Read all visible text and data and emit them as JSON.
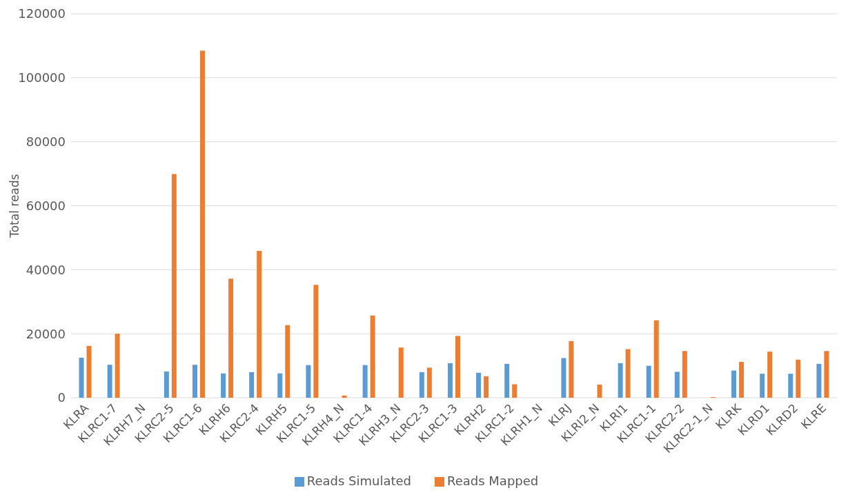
{
  "chart_data": {
    "type": "bar",
    "ylabel": "Total reads",
    "categories": [
      "KLRA",
      "KLRC1-7",
      "KLRH7_N",
      "KLRC2-5",
      "KLRC1-6",
      "KLRH6",
      "KLRC2-4",
      "KLRH5",
      "KLRC1-5",
      "KLRH4_N",
      "KLRC1-4",
      "KLRH3_N",
      "KLRC2-3",
      "KLRC1-3",
      "KLRH2",
      "KLRC1-2",
      "KLRH1_N",
      "KLRJ",
      "KLRI2_N",
      "KLRI1",
      "KLRC1-1",
      "KLRC2-2",
      "KLRC2-1_N",
      "KLRK",
      "KLRD1",
      "KLRD2",
      "KLRE"
    ],
    "series": [
      {
        "name": "Reads Simulated",
        "color": "#5b9bd5",
        "values": [
          12500,
          10300,
          0,
          8200,
          10300,
          7600,
          8000,
          7600,
          10200,
          0,
          10200,
          0,
          8000,
          10800,
          7800,
          10600,
          0,
          12400,
          0,
          10800,
          10000,
          8100,
          0,
          8500,
          7500,
          7500,
          10600
        ]
      },
      {
        "name": "Reads Mapped",
        "color": "#ed7d31",
        "values": [
          16200,
          20000,
          0,
          69900,
          108500,
          37200,
          45900,
          22700,
          35300,
          700,
          25700,
          15700,
          9400,
          19300,
          6700,
          4200,
          0,
          17700,
          4100,
          15200,
          24200,
          14600,
          200,
          11200,
          14400,
          11900,
          14600
        ]
      }
    ],
    "ylim": [
      0,
      120000
    ],
    "yticks": [
      0,
      20000,
      40000,
      60000,
      80000,
      100000,
      120000
    ],
    "grid": "y",
    "legend": "bottom"
  }
}
